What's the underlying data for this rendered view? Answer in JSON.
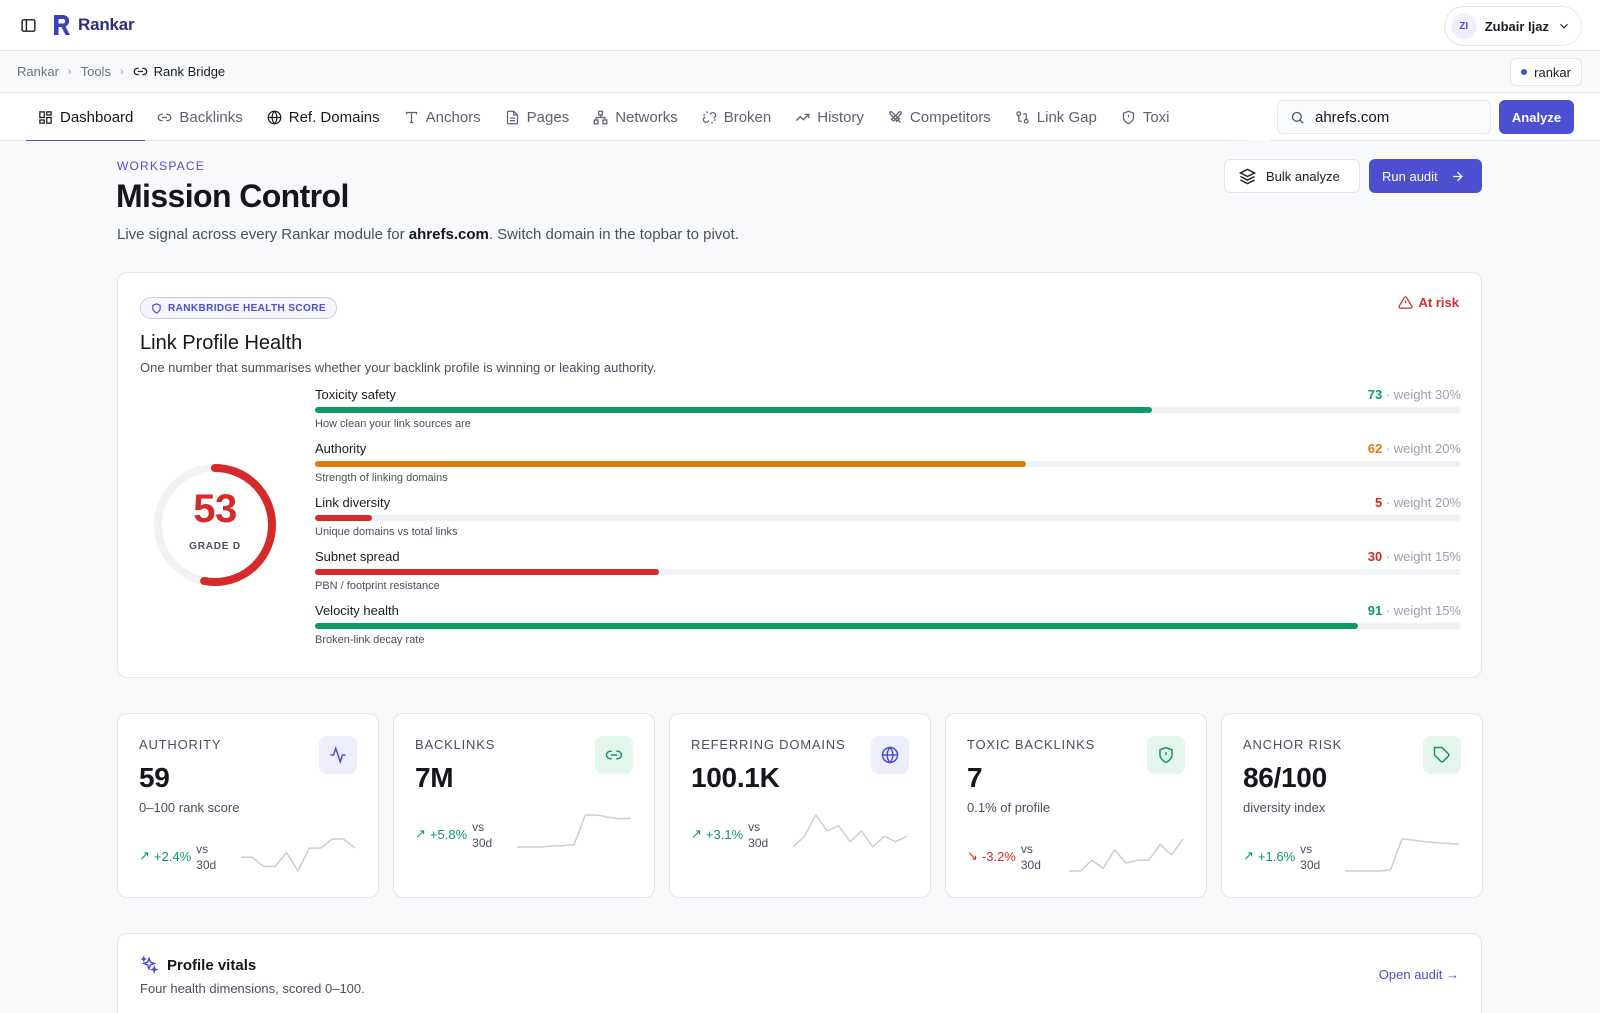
{
  "app": {
    "name": "Rankar"
  },
  "user": {
    "initials": "ZI",
    "name": "Zubair Ijaz"
  },
  "breadcrumb": {
    "items": [
      "Rankar",
      "Tools"
    ],
    "current": "Rank Bridge"
  },
  "workspace_chip": {
    "label": "rankar"
  },
  "tabs": [
    {
      "label": "Dashboard",
      "icon": "dashboard-icon"
    },
    {
      "label": "Backlinks",
      "icon": "link-icon"
    },
    {
      "label": "Ref. Domains",
      "icon": "globe-icon"
    },
    {
      "label": "Anchors",
      "icon": "type-icon"
    },
    {
      "label": "Pages",
      "icon": "file-icon"
    },
    {
      "label": "Networks",
      "icon": "network-icon"
    },
    {
      "label": "Broken",
      "icon": "broken-link-icon"
    },
    {
      "label": "History",
      "icon": "trend-icon"
    },
    {
      "label": "Competitors",
      "icon": "swords-icon"
    },
    {
      "label": "Link Gap",
      "icon": "git-compare-icon"
    },
    {
      "label": "Toxi",
      "icon": "shield-icon"
    }
  ],
  "search": {
    "value": "ahrefs.com"
  },
  "analyze_label": "Analyze",
  "header": {
    "eyebrow": "WORKSPACE",
    "title": "Mission Control",
    "subtitle_prefix": "Live signal across every Rankar module for ",
    "subtitle_domain": "ahrefs.com",
    "subtitle_suffix": ". Switch domain in the topbar to pivot.",
    "bulk_label": "Bulk analyze",
    "run_label": "Run audit"
  },
  "health": {
    "badge": "RANKBRIDGE HEALTH SCORE",
    "status": "At risk",
    "title": "Link Profile Health",
    "subtitle": "One number that summarises whether your backlink profile is winning or leaking authority.",
    "score": "53",
    "score_value": 53,
    "grade": "GRADE D",
    "metrics": [
      {
        "label": "Toxicity safety",
        "value": "73",
        "weight": "· weight 30%",
        "desc": "How clean your link sources are",
        "fill": 0.73,
        "color": "#0f9a64"
      },
      {
        "label": "Authority",
        "value": "62",
        "weight": "· weight 20%",
        "desc": "Strength of linking domains",
        "fill": 0.62,
        "color": "#e07b0e"
      },
      {
        "label": "Link diversity",
        "value": "5",
        "weight": "· weight 20%",
        "desc": "Unique domains vs total links",
        "fill": 0.05,
        "color": "#d62a2a"
      },
      {
        "label": "Subnet spread",
        "value": "30",
        "weight": "· weight 15%",
        "desc": "PBN / footprint resistance",
        "fill": 0.3,
        "color": "#d62a2a"
      },
      {
        "label": "Velocity health",
        "value": "91",
        "weight": "· weight 15%",
        "desc": "Broken-link decay rate",
        "fill": 0.91,
        "color": "#0f9a64"
      }
    ]
  },
  "stats": [
    {
      "label": "AUTHORITY",
      "value": "59",
      "sub": "0–100 rank score",
      "delta": "+2.4%",
      "vs": "vs",
      "period": "30d",
      "trend": "up",
      "icon": "activity-icon",
      "icon_bg": "#eceefc",
      "icon_color": "#4b4fd0",
      "spark": [
        4,
        4,
        2,
        2,
        5,
        1,
        6,
        6,
        8,
        8,
        6
      ]
    },
    {
      "label": "BACKLINKS",
      "value": "7M",
      "sub": "",
      "delta": "+5.8%",
      "vs": "vs",
      "period": "30d",
      "trend": "up",
      "icon": "link-icon",
      "icon_bg": "#e4f5ec",
      "icon_color": "#0f9a64",
      "spark": [
        1,
        1,
        1,
        1.2,
        1.3,
        1.5,
        8,
        8,
        7.5,
        7.2,
        7.3
      ]
    },
    {
      "label": "REFERRING DOMAINS",
      "value": "100.1K",
      "sub": "",
      "delta": "+3.1%",
      "vs": "vs",
      "period": "30d",
      "trend": "up",
      "icon": "globe-icon",
      "icon_bg": "#eceefc",
      "icon_color": "#4b4fd0",
      "spark": [
        1,
        3,
        7,
        4,
        5,
        2,
        4,
        1,
        3,
        2,
        3
      ]
    },
    {
      "label": "TOXIC BACKLINKS",
      "value": "7",
      "sub": "0.1% of profile",
      "delta": "-3.2%",
      "vs": "vs",
      "period": "30d",
      "trend": "down",
      "icon": "shield-icon",
      "icon_bg": "#e4f5ec",
      "icon_color": "#0f9a64",
      "spark": [
        1,
        1,
        3,
        1.5,
        5,
        2.5,
        3,
        3,
        6,
        4,
        7
      ]
    },
    {
      "label": "ANCHOR RISK",
      "value": "86/100",
      "sub": "diversity index",
      "delta": "+1.6%",
      "vs": "vs",
      "period": "30d",
      "trend": "up",
      "icon": "tag-icon",
      "icon_bg": "#e4f5ec",
      "icon_color": "#0f9a64",
      "spark": [
        1,
        1,
        1,
        1,
        1.2,
        7,
        6.8,
        6.5,
        6.3,
        6.2,
        6
      ]
    }
  ],
  "vitals": {
    "title": "Profile vitals",
    "subtitle": "Four health dimensions, scored 0–100.",
    "link": "Open audit →"
  },
  "colors": {
    "accent": "#4b4fd0",
    "good": "#0f9a64",
    "warn": "#e07b0e",
    "bad": "#d62a2a"
  }
}
